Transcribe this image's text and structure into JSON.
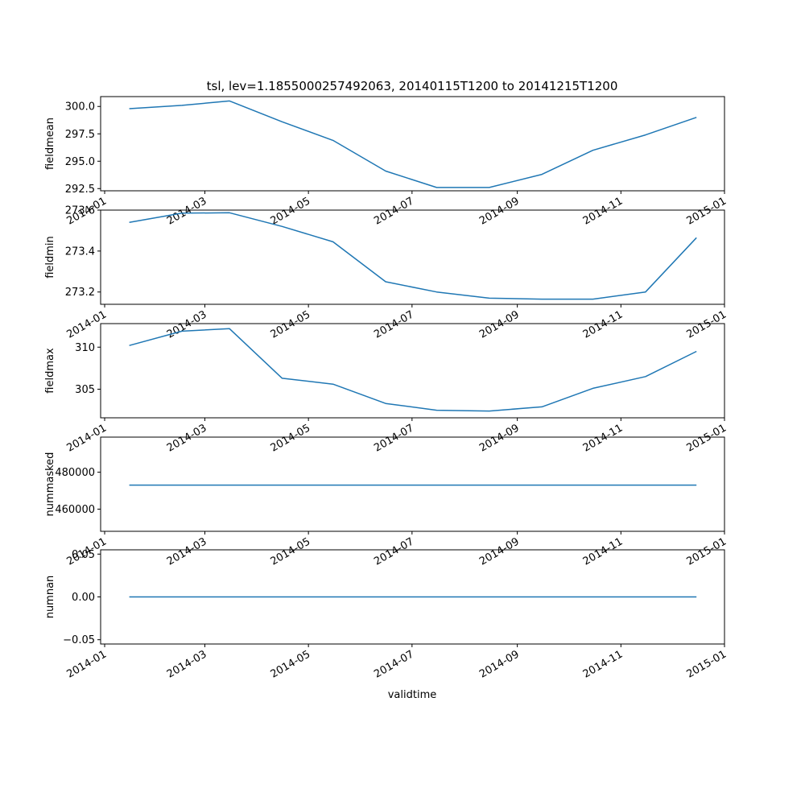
{
  "chart_data": {
    "type": "line",
    "title": "tsl, lev=1.1855000257492063, 20140115T1200 to 20141215T1200",
    "xlabel": "validtime",
    "x": [
      "2014-01-15",
      "2014-02-15",
      "2014-03-15",
      "2014-04-15",
      "2014-05-15",
      "2014-06-15",
      "2014-07-15",
      "2014-08-15",
      "2014-09-15",
      "2014-10-15",
      "2014-11-15",
      "2014-12-15"
    ],
    "xlim": [
      "2014-01-01",
      "2015-01-01"
    ],
    "xticks": [
      "2014-01",
      "2014-03",
      "2014-05",
      "2014-07",
      "2014-09",
      "2014-11",
      "2015-01"
    ],
    "line_color": "#1f77b4",
    "grid": false,
    "panels": [
      {
        "ylabel": "fieldmean",
        "ylim": [
          292.3,
          300.9
        ],
        "yticks": [
          "292.5",
          "295.0",
          "297.5",
          "300.0"
        ],
        "values": [
          299.8,
          300.1,
          300.5,
          298.6,
          296.9,
          294.1,
          292.6,
          292.6,
          293.8,
          296.0,
          297.4,
          299.0
        ]
      },
      {
        "ylabel": "fieldmin",
        "ylim": [
          273.14,
          273.6
        ],
        "yticks": [
          "273.2",
          "273.4",
          "273.6"
        ],
        "values": [
          273.54,
          273.585,
          273.587,
          273.52,
          273.445,
          273.25,
          273.2,
          273.17,
          273.165,
          273.165,
          273.2,
          273.465
        ]
      },
      {
        "ylabel": "fieldmax",
        "ylim": [
          301.6,
          312.8
        ],
        "yticks": [
          "305",
          "310"
        ],
        "values": [
          310.2,
          311.9,
          312.2,
          306.3,
          305.6,
          303.3,
          302.5,
          302.4,
          302.9,
          305.1,
          306.5,
          309.5
        ]
      },
      {
        "ylabel": "nummasked",
        "ylim": [
          448000,
          499000
        ],
        "yticks": [
          "460000",
          "480000"
        ],
        "values": [
          473000,
          473000,
          473000,
          473000,
          473000,
          473000,
          473000,
          473000,
          473000,
          473000,
          473000,
          473000
        ]
      },
      {
        "ylabel": "numnan",
        "ylim": [
          -0.055,
          0.055
        ],
        "yticks": [
          "−0.05",
          "0.00",
          "0.05"
        ],
        "values": [
          0,
          0,
          0,
          0,
          0,
          0,
          0,
          0,
          0,
          0,
          0,
          0
        ]
      }
    ]
  }
}
